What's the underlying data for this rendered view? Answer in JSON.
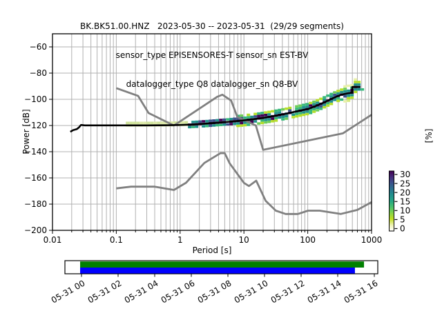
{
  "figure": {
    "title_line1": "BK.BK51.00.HNZ   2023-05-30 -- 2023-05-31  (29/29 segments)",
    "title_line2": "sensor_type EPISENSORES-T sensor_sn EST-BV",
    "title_line3": "datalogger_type Q8 datalogger_sn Q8-BV"
  },
  "axes": {
    "xlabel": "Period [s]",
    "ylabel": "Power [dB]",
    "x_major_ticks": [
      {
        "value": 0.01,
        "label": "0.01"
      },
      {
        "value": 0.1,
        "label": "0.1"
      },
      {
        "value": 1,
        "label": "1"
      },
      {
        "value": 10,
        "label": "10"
      },
      {
        "value": 100,
        "label": "100"
      },
      {
        "value": 1000,
        "label": "1000"
      }
    ],
    "y_ticks": [
      {
        "value": -60,
        "label": "−60"
      },
      {
        "value": -80,
        "label": "−80"
      },
      {
        "value": -100,
        "label": "−100"
      },
      {
        "value": -120,
        "label": "−120"
      },
      {
        "value": -140,
        "label": "−140"
      },
      {
        "value": -160,
        "label": "−160"
      },
      {
        "value": -180,
        "label": "−180"
      },
      {
        "value": -200,
        "label": "−200"
      }
    ]
  },
  "colorbar": {
    "label": "[%]",
    "tick_labels": [
      "0",
      "5",
      "10",
      "15",
      "20",
      "25",
      "30"
    ],
    "tick_values": [
      0,
      5,
      10,
      15,
      20,
      25,
      30
    ],
    "gradient_bottom_to_top": [
      "#ffffff",
      "#edf2b1",
      "#c2df23",
      "#86d549",
      "#4ac16d",
      "#26a784",
      "#21908d",
      "#2c728e",
      "#3b528b",
      "#472d7b",
      "#440154"
    ]
  },
  "timeline": {
    "tick_labels": [
      "05-31 00",
      "05-31 02",
      "05-31 04",
      "05-31 06",
      "05-31 08",
      "05-31 10",
      "05-31 12",
      "05-31 14",
      "05-31 16"
    ],
    "green_color": "#008000",
    "blue_color": "#0000ff",
    "green_span": [
      0.0486,
      0.956
    ],
    "blue_span": [
      0.0486,
      0.927
    ]
  },
  "chart_data": {
    "type": "heatmap",
    "title": "BK.BK51.00.HNZ 2023-05-30 -- 2023-05-31 (29/29 segments)",
    "xlabel": "Period [s]",
    "ylabel": "Power [dB]",
    "xscale": "log",
    "xlim": [
      0.01,
      1000
    ],
    "ylim": [
      -200,
      -50
    ],
    "colorbar_label": "[%]",
    "colorbar_range": [
      0,
      30
    ],
    "grid": true,
    "grid_color": "#b0b0b0",
    "noise_model_color": "#808080",
    "line_color": "#000000",
    "mode_line": [
      [
        0.019,
        -124.8
      ],
      [
        0.021,
        -123.6
      ],
      [
        0.024,
        -122.8
      ],
      [
        0.026,
        -121.5
      ],
      [
        0.028,
        -119.6
      ],
      [
        0.032,
        -119.9
      ],
      [
        0.3,
        -119.9
      ],
      [
        0.7,
        -119.8
      ],
      [
        1.0,
        -119.6
      ],
      [
        1.5,
        -119.3
      ],
      [
        2.5,
        -118.6
      ],
      [
        4,
        -117.8
      ],
      [
        6,
        -117.1
      ],
      [
        9,
        -116.3
      ],
      [
        13,
        -115.4
      ],
      [
        18,
        -114.5
      ],
      [
        25,
        -113.4
      ],
      [
        34,
        -112.2
      ],
      [
        46,
        -111.0
      ],
      [
        62,
        -109.6
      ],
      [
        82,
        -108.3
      ],
      [
        100,
        -107.4
      ],
      [
        125,
        -105.7
      ],
      [
        155,
        -103.8
      ],
      [
        190,
        -101.9
      ],
      [
        230,
        -99.9
      ],
      [
        280,
        -98.0
      ],
      [
        340,
        -96.4
      ],
      [
        420,
        -95.5
      ],
      [
        495,
        -94.9
      ],
      [
        500,
        -90.6
      ],
      [
        670,
        -90.6
      ]
    ],
    "nhnm": [
      [
        0.1,
        -91.5
      ],
      [
        0.22,
        -97.4
      ],
      [
        0.32,
        -110.5
      ],
      [
        0.8,
        -120.0
      ],
      [
        3.8,
        -98.1
      ],
      [
        4.6,
        -96.5
      ],
      [
        6.3,
        -101.0
      ],
      [
        7.9,
        -113.5
      ],
      [
        15.4,
        -120.0
      ],
      [
        20,
        -138.6
      ],
      [
        354.8,
        -126.0
      ],
      [
        1000,
        -111.8
      ]
    ],
    "nlnm": [
      [
        0.1,
        -168.0
      ],
      [
        0.17,
        -166.7
      ],
      [
        0.4,
        -166.7
      ],
      [
        0.8,
        -169.2
      ],
      [
        1.24,
        -163.7
      ],
      [
        2.4,
        -148.6
      ],
      [
        4.3,
        -141.1
      ],
      [
        5.0,
        -141.1
      ],
      [
        6.0,
        -149.0
      ],
      [
        10,
        -163.8
      ],
      [
        12,
        -166.2
      ],
      [
        15.6,
        -162.1
      ],
      [
        21.9,
        -177.5
      ],
      [
        31.6,
        -185.0
      ],
      [
        45,
        -187.5
      ],
      [
        70,
        -187.5
      ],
      [
        101,
        -185.0
      ],
      [
        154,
        -185.0
      ],
      [
        328,
        -187.5
      ],
      [
        600,
        -184.4
      ],
      [
        1000,
        -178.5
      ]
    ],
    "band_halfwidth": [
      [
        0.14,
        1.0
      ],
      [
        1.2,
        1.6
      ],
      [
        3,
        2.3
      ],
      [
        10,
        3.0
      ],
      [
        30,
        3.4
      ],
      [
        100,
        4.0
      ],
      [
        300,
        4.6
      ],
      [
        495,
        5.0
      ],
      [
        505,
        5.8
      ],
      [
        745,
        5.8
      ]
    ],
    "cell_palette": {
      "center": [
        "#2b0b4e",
        "#440154",
        "#31688e"
      ],
      "inner": [
        "#440154",
        "#3b528b",
        "#21918c",
        "#21918c",
        "#35b779"
      ],
      "mid": [
        "#35b779",
        "#6ece58",
        "#b5de2b",
        "#b5de2b"
      ],
      "outer": [
        "#d8e982",
        "#e9f1a9"
      ],
      "flat": [
        "#dce9a6",
        "#cfe39a"
      ]
    }
  }
}
